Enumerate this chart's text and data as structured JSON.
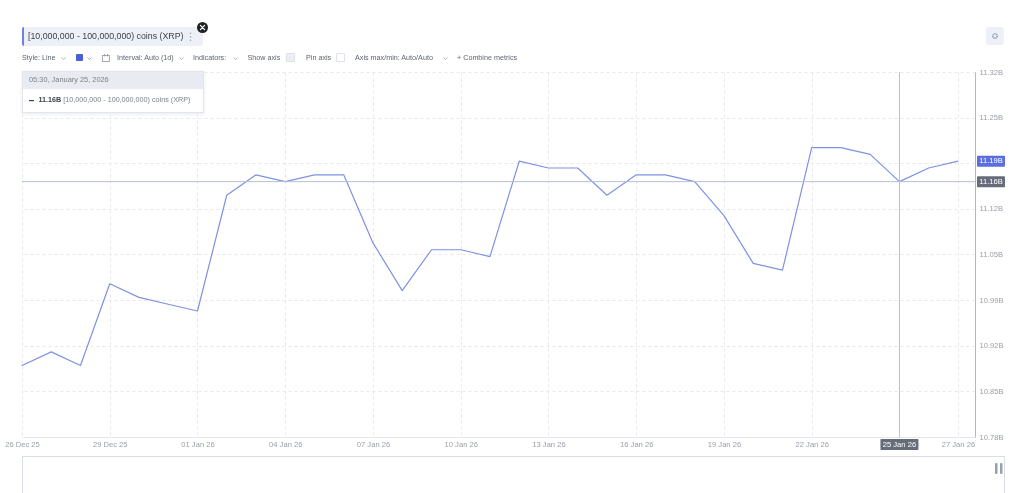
{
  "chart_data": {
    "type": "line",
    "title": "[10,000,000 - 100,000,000) coins (XRP)",
    "x": [
      "2025-12-26",
      "2025-12-27",
      "2025-12-28",
      "2025-12-29",
      "2025-12-30",
      "2025-12-31",
      "2026-01-01",
      "2026-01-02",
      "2026-01-03",
      "2026-01-04",
      "2026-01-05",
      "2026-01-06",
      "2026-01-07",
      "2026-01-08",
      "2026-01-09",
      "2026-01-10",
      "2026-01-11",
      "2026-01-12",
      "2026-01-13",
      "2026-01-14",
      "2026-01-15",
      "2026-01-16",
      "2026-01-17",
      "2026-01-18",
      "2026-01-19",
      "2026-01-20",
      "2026-01-21",
      "2026-01-22",
      "2026-01-23",
      "2026-01-24",
      "2026-01-25",
      "2026-01-26",
      "2026-01-27"
    ],
    "series": [
      {
        "color": "#7f92e2",
        "values": [
          10.89,
          10.91,
          10.89,
          11.01,
          10.99,
          10.98,
          10.97,
          11.14,
          11.17,
          11.16,
          11.17,
          11.17,
          11.07,
          11.0,
          11.06,
          11.06,
          11.05,
          11.19,
          11.18,
          11.18,
          11.14,
          11.17,
          11.17,
          11.16,
          11.11,
          11.04,
          11.03,
          11.21,
          11.21,
          11.2,
          11.16,
          11.18,
          11.19
        ]
      }
    ],
    "xlim": [
      "2025-12-26",
      "2026-01-27T14:00"
    ],
    "xticks": [
      {
        "value": "2025-12-26",
        "label": "26 Dec 25"
      },
      {
        "value": "2025-12-29",
        "label": "29 Dec 25"
      },
      {
        "value": "2026-01-01",
        "label": "01 Jan 26"
      },
      {
        "value": "2026-01-04",
        "label": "04 Jan 26"
      },
      {
        "value": "2026-01-07",
        "label": "07 Jan 26"
      },
      {
        "value": "2026-01-10",
        "label": "10 Jan 26"
      },
      {
        "value": "2026-01-13",
        "label": "13 Jan 26"
      },
      {
        "value": "2026-01-16",
        "label": "16 Jan 26"
      },
      {
        "value": "2026-01-19",
        "label": "19 Jan 26"
      },
      {
        "value": "2026-01-22",
        "label": "22 Jan 26"
      },
      {
        "value": "2026-01-27",
        "label": "27 Jan 26"
      }
    ],
    "ylim": [
      10.785,
      11.321
    ],
    "yticks": [
      {
        "value": 10.785,
        "label": "10.78B"
      },
      {
        "value": 10.852,
        "label": "10.85B"
      },
      {
        "value": 10.919,
        "label": "10.92B"
      },
      {
        "value": 10.986,
        "label": "10.99B"
      },
      {
        "value": 11.053,
        "label": "11.05B"
      },
      {
        "value": 11.12,
        "label": "11.12B"
      },
      {
        "value": 11.187,
        "label": null
      },
      {
        "value": 11.254,
        "label": "11.25B"
      },
      {
        "value": 11.321,
        "label": "11.32B"
      }
    ],
    "grid": true,
    "ref_lines": [
      {
        "axis": "x",
        "value": "2026-01-25",
        "label": "25 Jan 26",
        "color": "#b4c0d8"
      },
      {
        "axis": "y",
        "value": 11.16,
        "label": "11.16B",
        "color": "#b4c0d8"
      }
    ],
    "annotations": [
      "Style: Line",
      "Interval: Auto (1d)",
      "Indicators:",
      "Show axis",
      "Pin axis",
      "Axis max/min: Auto/Auto",
      "+ Combine metrics",
      "05:30, January 25, 2026",
      "11.16B [10,000,000 - 100,000,000) coins (XRP)",
      {
        "text": "11.19B",
        "y": 11.19
      }
    ]
  }
}
